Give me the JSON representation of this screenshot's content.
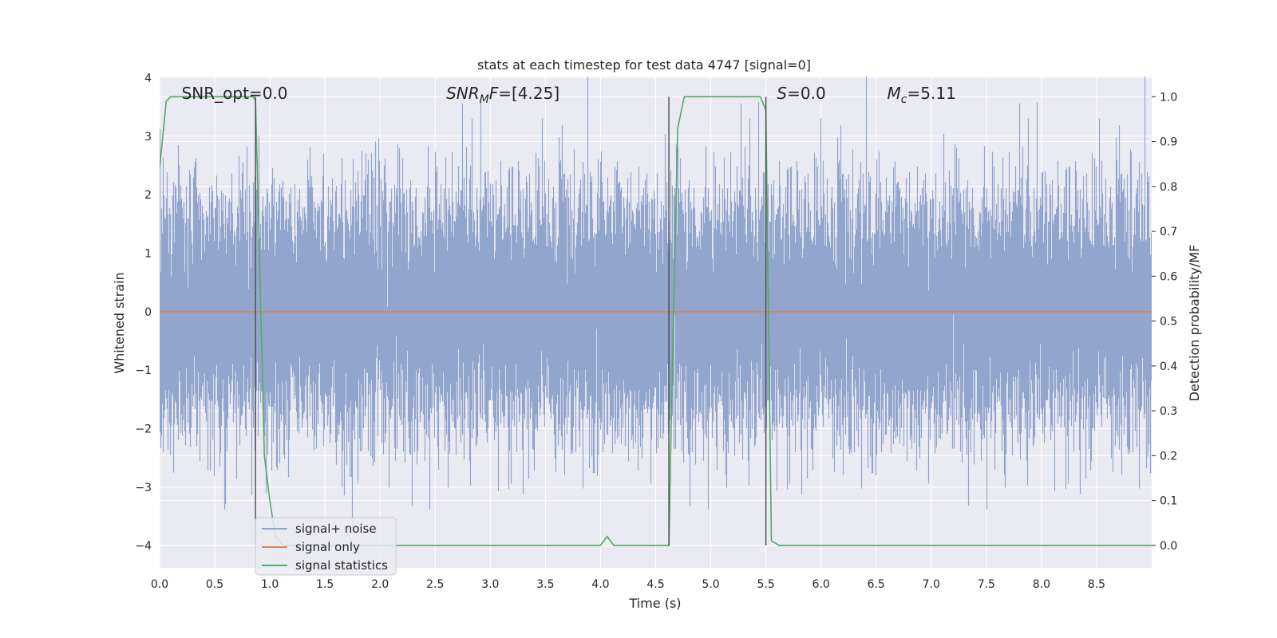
{
  "chart_data": {
    "type": "line",
    "title": "stats at each timestep for test data 4747 [signal=0]",
    "xlabel": "Time (s)",
    "ylabel_left": "Whitened strain",
    "ylabel_right": "Detection probability/MF",
    "xlim": [
      0,
      9.0
    ],
    "ylim_left": [
      -4.38,
      4.02
    ],
    "ylim_right": [
      -0.05,
      1.045
    ],
    "xticks": [
      0.0,
      0.5,
      1.0,
      1.5,
      2.0,
      2.5,
      3.0,
      3.5,
      4.0,
      4.5,
      5.0,
      5.5,
      6.0,
      6.5,
      7.0,
      7.5,
      8.0,
      8.5
    ],
    "xtick_labels": [
      "0.0",
      "0.5",
      "1.0",
      "1.5",
      "2.0",
      "2.5",
      "3.0",
      "3.5",
      "4.0",
      "4.5",
      "5.0",
      "5.5",
      "6.0",
      "6.5",
      "7.0",
      "7.5",
      "8.0",
      "8.5"
    ],
    "yticks_left": [
      -4,
      -3,
      -2,
      -1,
      0,
      1,
      2,
      3,
      4
    ],
    "ytick_labels_left": [
      "−4",
      "−3",
      "−2",
      "−1",
      "0",
      "1",
      "2",
      "3",
      "4"
    ],
    "yticks_right": [
      0.0,
      0.1,
      0.2,
      0.3,
      0.4,
      0.5,
      0.6,
      0.7,
      0.8,
      0.9,
      1.0
    ],
    "ytick_labels_right": [
      "0.0",
      "0.1",
      "0.2",
      "0.3",
      "0.4",
      "0.5",
      "0.6",
      "0.7",
      "0.8",
      "0.9",
      "1.0"
    ],
    "grid": true,
    "legend_position": "lower-left",
    "annotations": [
      {
        "text": "SNR_opt=0.0",
        "x": 0.2
      },
      {
        "text": "SNR_MF=[4.25]",
        "x": 2.6,
        "math": "mf"
      },
      {
        "text": "S=0.0",
        "x": 5.6,
        "math": "s"
      },
      {
        "text": "M_c=5.11",
        "x": 6.6,
        "math": "mc"
      }
    ],
    "series": [
      {
        "name": "signal+ noise",
        "color": "#92a5cd",
        "axis": "left",
        "kind": "noise",
        "duration": 9.0,
        "sample_rate": 2048,
        "stddev": 1.0
      },
      {
        "name": "signal only",
        "color": "#dd8452",
        "axis": "left",
        "x": [
          0.0,
          9.0
        ],
        "y": [
          0.0,
          0.0
        ]
      },
      {
        "name": "signal statistics",
        "color": "#55a868",
        "axis": "right",
        "x": [
          0.0,
          0.06,
          0.1,
          0.15,
          0.5,
          0.85,
          0.87,
          0.91,
          0.95,
          1.0,
          1.05,
          1.12,
          2.0,
          3.0,
          3.95,
          4.0,
          4.06,
          4.12,
          4.5,
          4.62,
          4.65,
          4.7,
          4.76,
          5.0,
          5.45,
          5.5,
          5.55,
          5.62,
          9.0
        ],
        "y": [
          0.84,
          0.99,
          1.0,
          1.0,
          1.0,
          1.0,
          0.99,
          0.6,
          0.2,
          0.1,
          0.02,
          0.0,
          0.0,
          0.0,
          0.0,
          0.0,
          0.02,
          0.0,
          0.0,
          0.0,
          0.38,
          0.93,
          1.0,
          1.0,
          1.0,
          0.97,
          0.01,
          0.0,
          0.0
        ]
      }
    ],
    "vertical_lines": [
      0.87,
      4.62,
      5.5
    ],
    "vertical_line_color": "#4c4c4c"
  }
}
